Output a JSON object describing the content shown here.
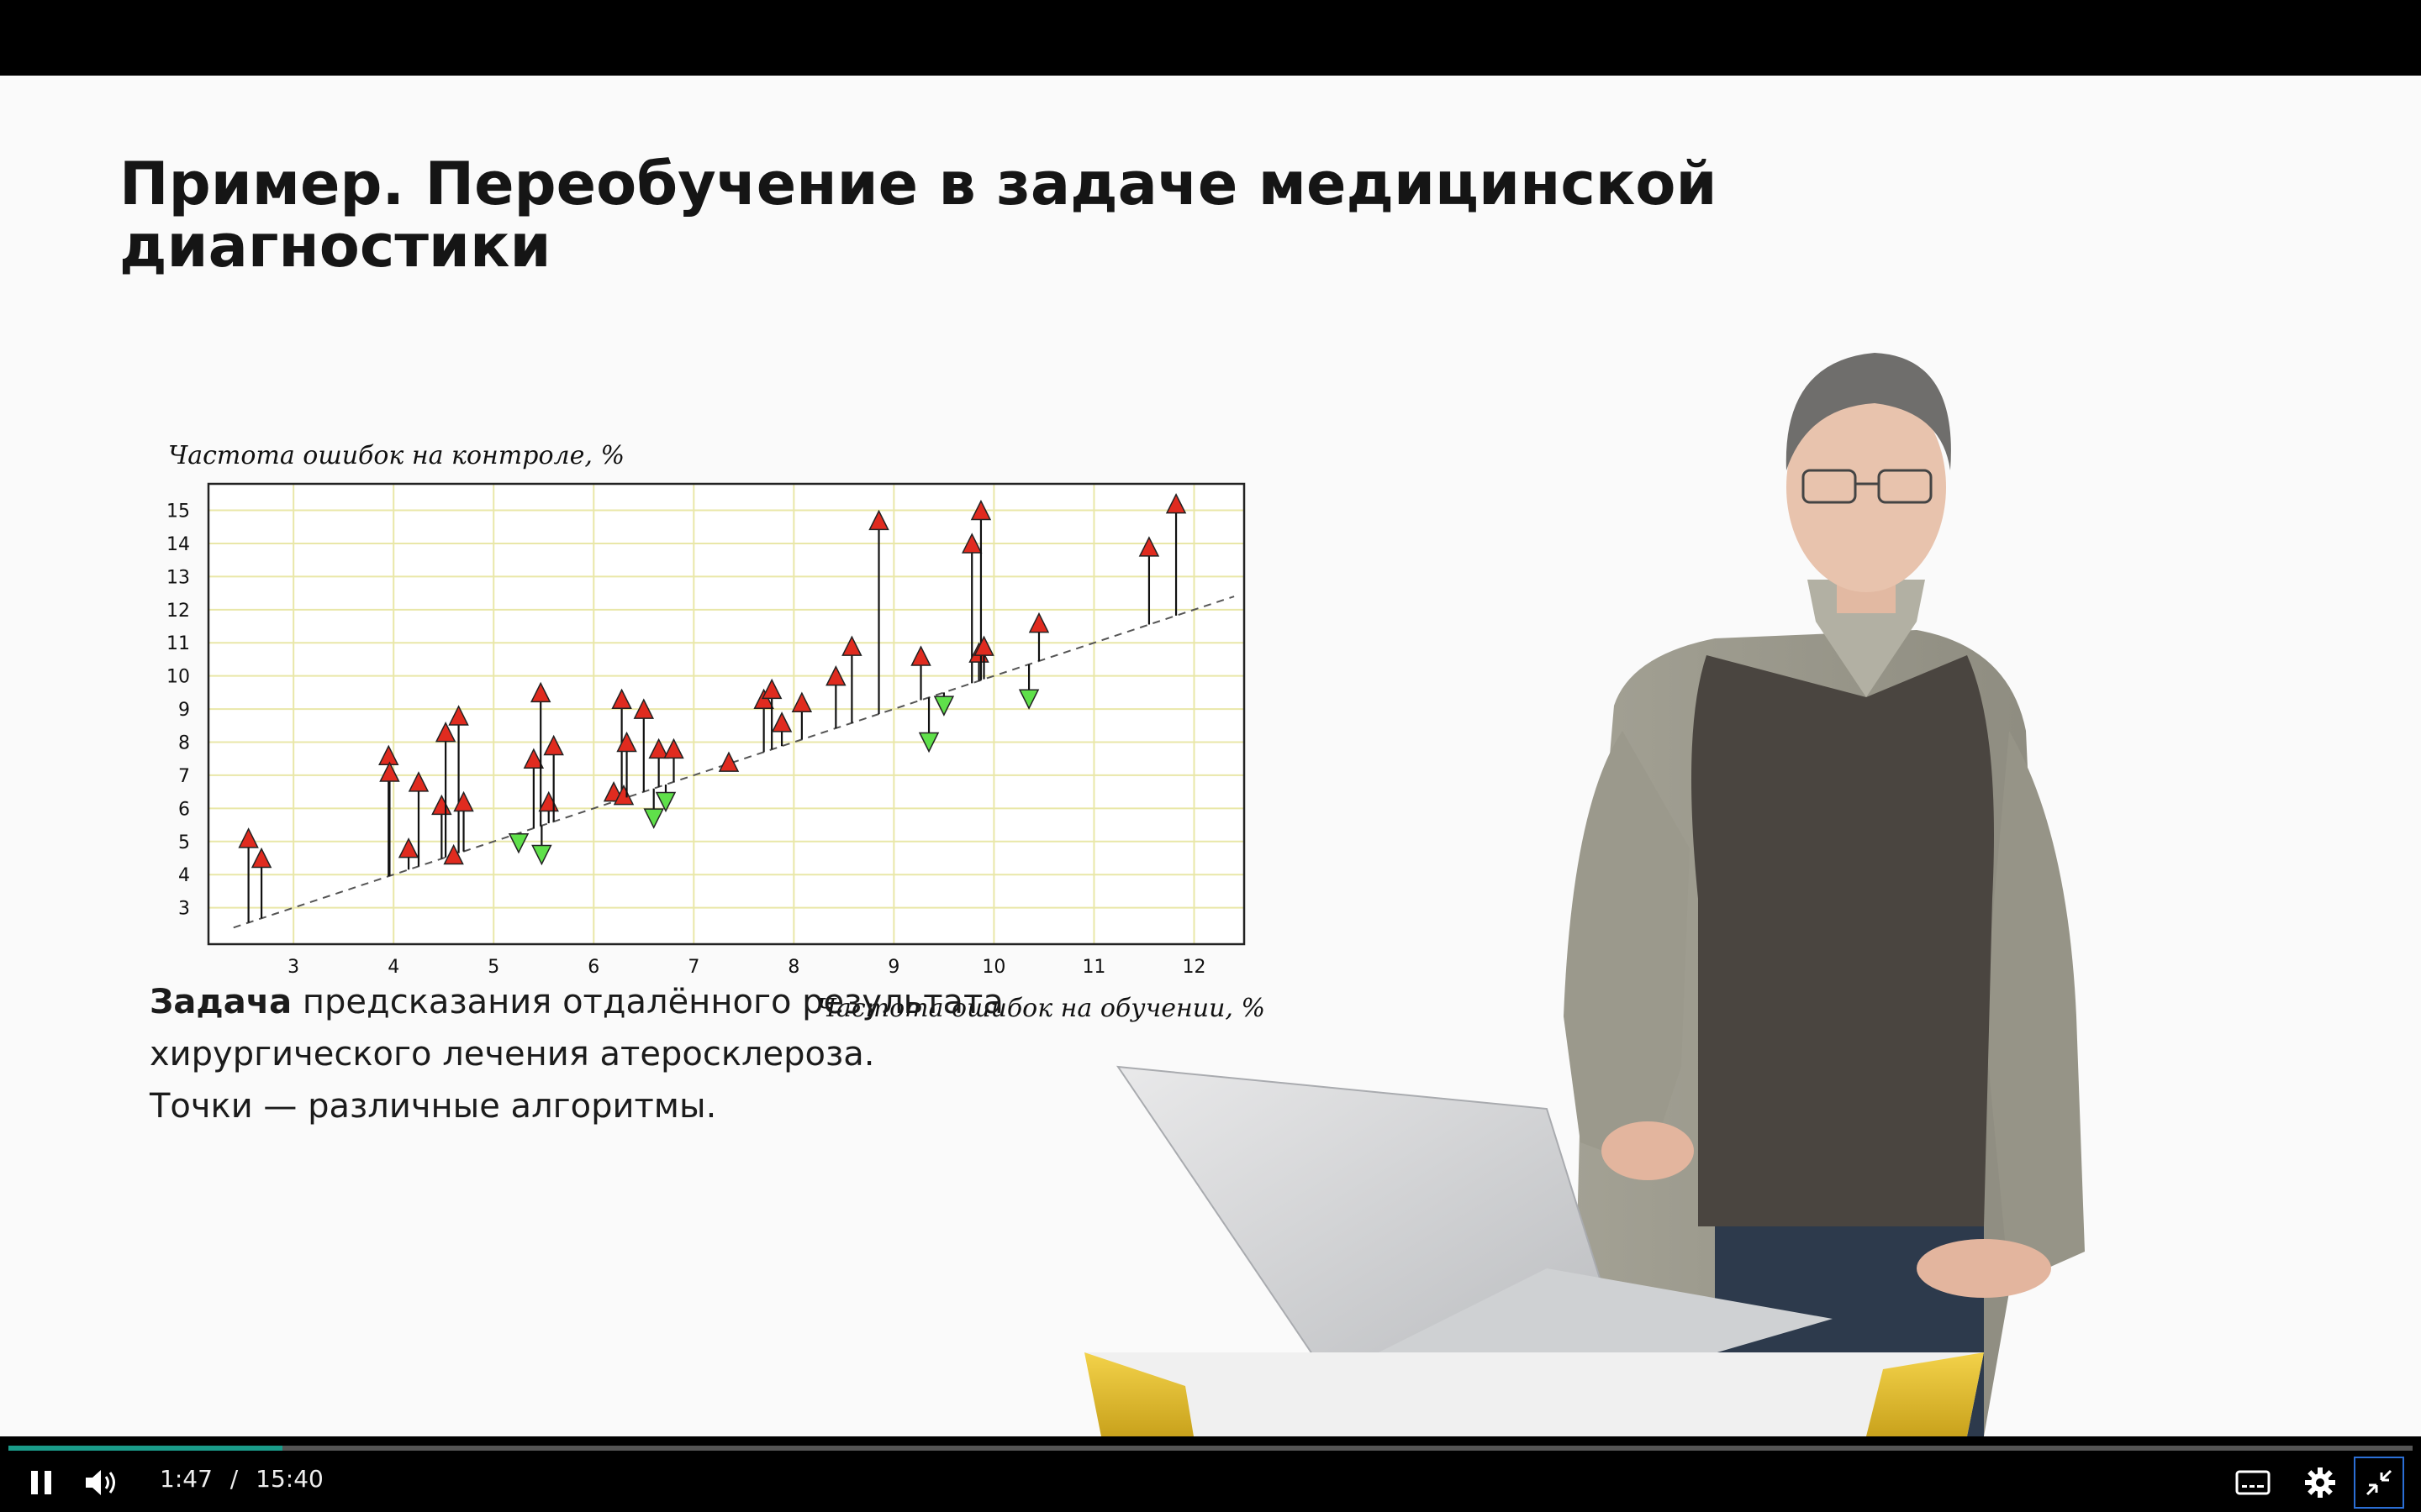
{
  "slide": {
    "title_line1": "Пример. Переобучение в задаче медицинской",
    "title_line2": "диагностики",
    "task_bold": "Задача",
    "task_line1_rest": " предсказания отдалённого результата",
    "task_line2": "хирургического лечения атеросклероза.",
    "task_line3": "Точки — различные алгоритмы."
  },
  "chart_data": {
    "type": "scatter",
    "ylabel": "Частота ошибок на контроле, %",
    "xlabel": "Частота ошибок на обучении, %",
    "xlim": [
      2.15,
      12.5
    ],
    "ylim": [
      1.9,
      15.8
    ],
    "xticks": [
      3,
      4,
      5,
      6,
      7,
      8,
      9,
      10,
      11,
      12
    ],
    "yticks": [
      3,
      4,
      5,
      6,
      7,
      8,
      9,
      10,
      11,
      12,
      13,
      14,
      15
    ],
    "grid": true,
    "diagonal": {
      "x0": 2.4,
      "y0": 2.4,
      "x1": 12.4,
      "y1": 12.4,
      "style": "dashed"
    },
    "points": [
      {
        "x": 2.55,
        "y": 5.1
      },
      {
        "x": 2.68,
        "y": 4.5
      },
      {
        "x": 3.95,
        "y": 7.6
      },
      {
        "x": 3.96,
        "y": 7.1
      },
      {
        "x": 4.15,
        "y": 4.8
      },
      {
        "x": 4.25,
        "y": 6.8
      },
      {
        "x": 4.48,
        "y": 6.1
      },
      {
        "x": 4.52,
        "y": 8.3
      },
      {
        "x": 4.6,
        "y": 4.6
      },
      {
        "x": 4.65,
        "y": 8.8
      },
      {
        "x": 4.7,
        "y": 6.2
      },
      {
        "x": 5.25,
        "y": 4.95
      },
      {
        "x": 5.4,
        "y": 7.5
      },
      {
        "x": 5.47,
        "y": 9.5
      },
      {
        "x": 5.48,
        "y": 4.6
      },
      {
        "x": 5.55,
        "y": 6.2
      },
      {
        "x": 5.6,
        "y": 7.9
      },
      {
        "x": 6.2,
        "y": 6.5
      },
      {
        "x": 6.28,
        "y": 9.3
      },
      {
        "x": 6.3,
        "y": 6.4
      },
      {
        "x": 6.33,
        "y": 8.0
      },
      {
        "x": 6.5,
        "y": 9.0
      },
      {
        "x": 6.6,
        "y": 5.7
      },
      {
        "x": 6.65,
        "y": 7.8
      },
      {
        "x": 6.72,
        "y": 6.2
      },
      {
        "x": 6.8,
        "y": 7.8
      },
      {
        "x": 7.35,
        "y": 7.4
      },
      {
        "x": 7.7,
        "y": 9.3
      },
      {
        "x": 7.78,
        "y": 9.6
      },
      {
        "x": 7.88,
        "y": 8.6
      },
      {
        "x": 8.08,
        "y": 9.2
      },
      {
        "x": 8.42,
        "y": 10.0
      },
      {
        "x": 8.58,
        "y": 10.9
      },
      {
        "x": 8.85,
        "y": 14.7
      },
      {
        "x": 9.27,
        "y": 10.6
      },
      {
        "x": 9.35,
        "y": 8.0
      },
      {
        "x": 9.5,
        "y": 9.1
      },
      {
        "x": 9.78,
        "y": 14.0
      },
      {
        "x": 9.85,
        "y": 10.7
      },
      {
        "x": 9.87,
        "y": 15.0
      },
      {
        "x": 9.9,
        "y": 10.9
      },
      {
        "x": 10.35,
        "y": 9.3
      },
      {
        "x": 10.45,
        "y": 11.6
      },
      {
        "x": 11.55,
        "y": 13.9
      },
      {
        "x": 11.82,
        "y": 15.2
      }
    ]
  },
  "player": {
    "current_time": "1:47",
    "separator": "/",
    "duration": "15:40",
    "progress_fraction": 0.114,
    "icons": [
      "pause-icon",
      "volume-icon",
      "captions-icon",
      "gear-icon",
      "exit-fullscreen-icon"
    ]
  },
  "colors": {
    "up_marker": "#e02b1f",
    "down_marker": "#5fe04a",
    "grid": "#e9e7a8",
    "progress": "#1a9c8a"
  }
}
